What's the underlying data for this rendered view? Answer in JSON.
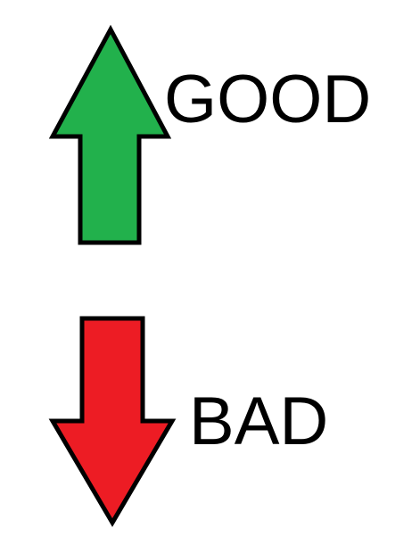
{
  "items": [
    {
      "label": "GOOD",
      "direction": "up",
      "icon": "up-arrow-icon",
      "color": "#22b14c"
    },
    {
      "label": "BAD",
      "direction": "down",
      "icon": "down-arrow-icon",
      "color": "#ed1c24"
    }
  ],
  "colors": {
    "outline": "#000000",
    "text": "#000000",
    "background": "#ffffff"
  }
}
